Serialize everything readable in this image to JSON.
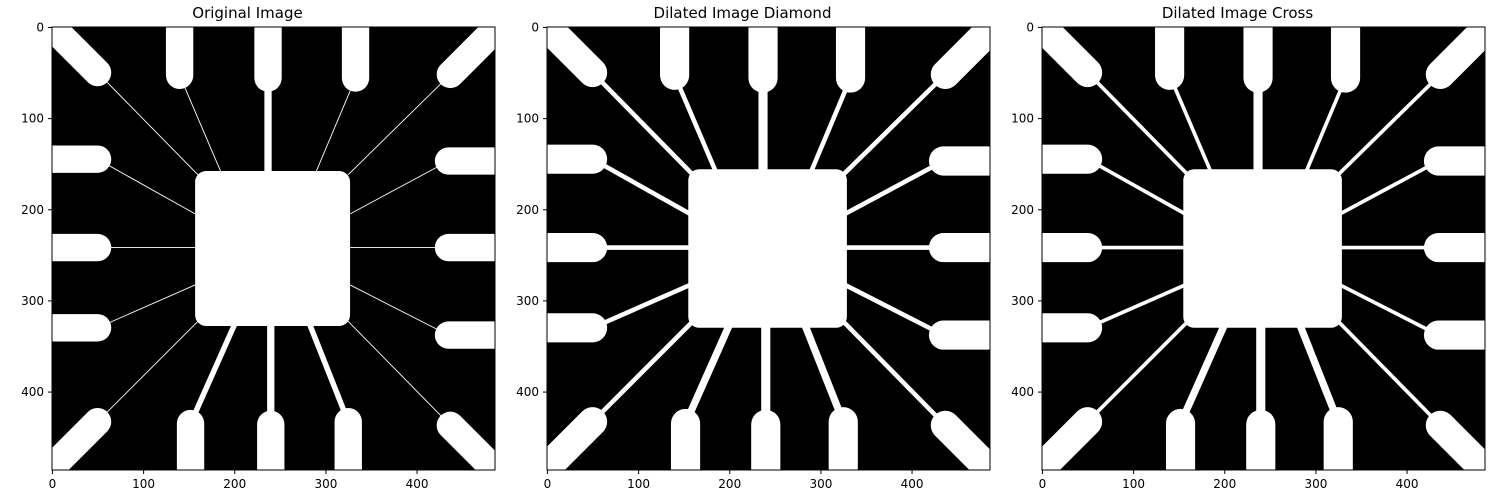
{
  "figure": {
    "panels": [
      {
        "title": "Original Image",
        "dilation": "none"
      },
      {
        "title": "Dilated Image Diamond",
        "dilation": "diamond"
      },
      {
        "title": "Dilated Image Cross",
        "dilation": "cross"
      }
    ],
    "x_ticks": [
      "0",
      "100",
      "200",
      "300",
      "400"
    ],
    "y_ticks": [
      "0",
      "100",
      "200",
      "300",
      "400"
    ],
    "colors": {
      "background": "#000000",
      "foreground": "#ffffff",
      "frame": "#000000"
    }
  }
}
